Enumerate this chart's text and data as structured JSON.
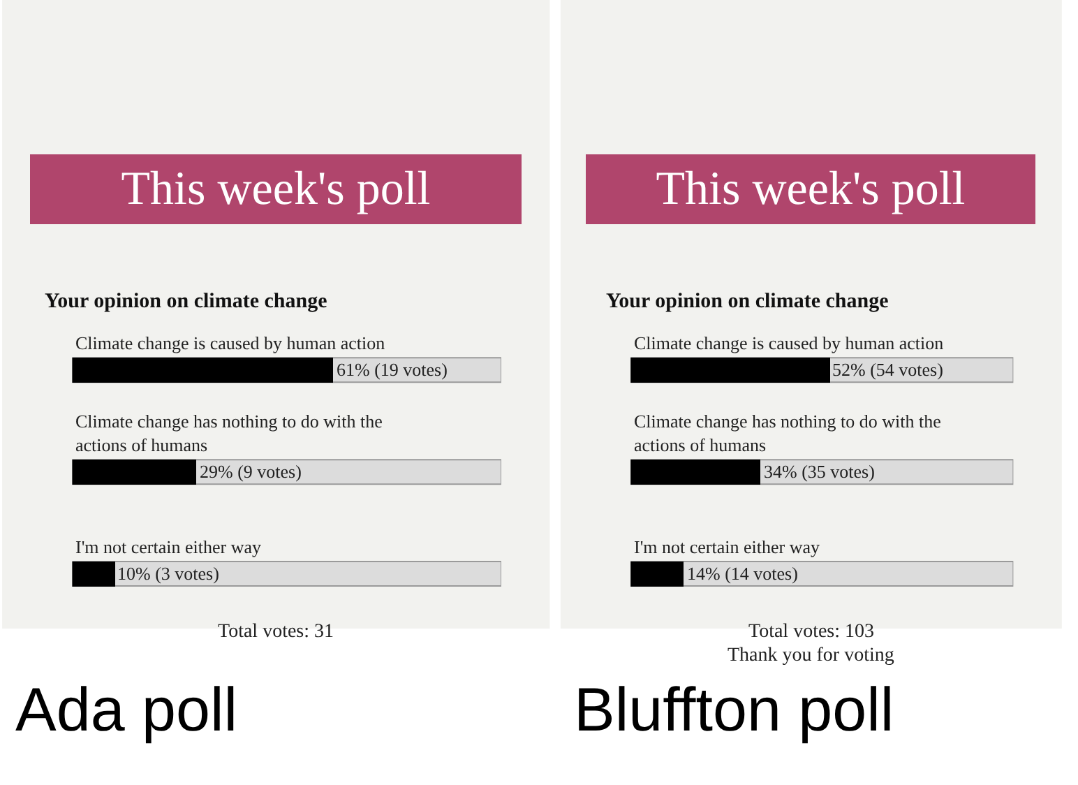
{
  "chart_data": [
    {
      "type": "bar",
      "orientation": "horizontal",
      "title": "This week's poll",
      "subtitle": "Your opinion on climate change",
      "categories": [
        "Climate change is caused by human action",
        "Climate change has nothing to do with the actions of humans",
        "I'm not certain either way"
      ],
      "values": [
        61,
        29,
        10
      ],
      "value_labels": [
        "61% (19 votes)",
        "29% (9 votes)",
        "10% (3 votes)"
      ],
      "color": "#000000",
      "xlim": [
        0,
        100
      ],
      "tick_labels": false,
      "grid": false,
      "annotations": [
        "Total votes: 31",
        "Ada poll"
      ]
    },
    {
      "type": "bar",
      "orientation": "horizontal",
      "title": "This week's poll",
      "subtitle": "Your opinion on climate change",
      "categories": [
        "Climate change is caused by human action",
        "Climate change has nothing to do with the actions of humans",
        "I'm not certain either way"
      ],
      "values": [
        52,
        34,
        14
      ],
      "value_labels": [
        "52% (54 votes)",
        "34% (35 votes)",
        "14% (14 votes)"
      ],
      "color": "#000000",
      "xlim": [
        0,
        100
      ],
      "tick_labels": false,
      "grid": false,
      "annotations": [
        "Total votes: 103",
        "Thank you for voting",
        "Bluffton poll"
      ]
    }
  ]
}
